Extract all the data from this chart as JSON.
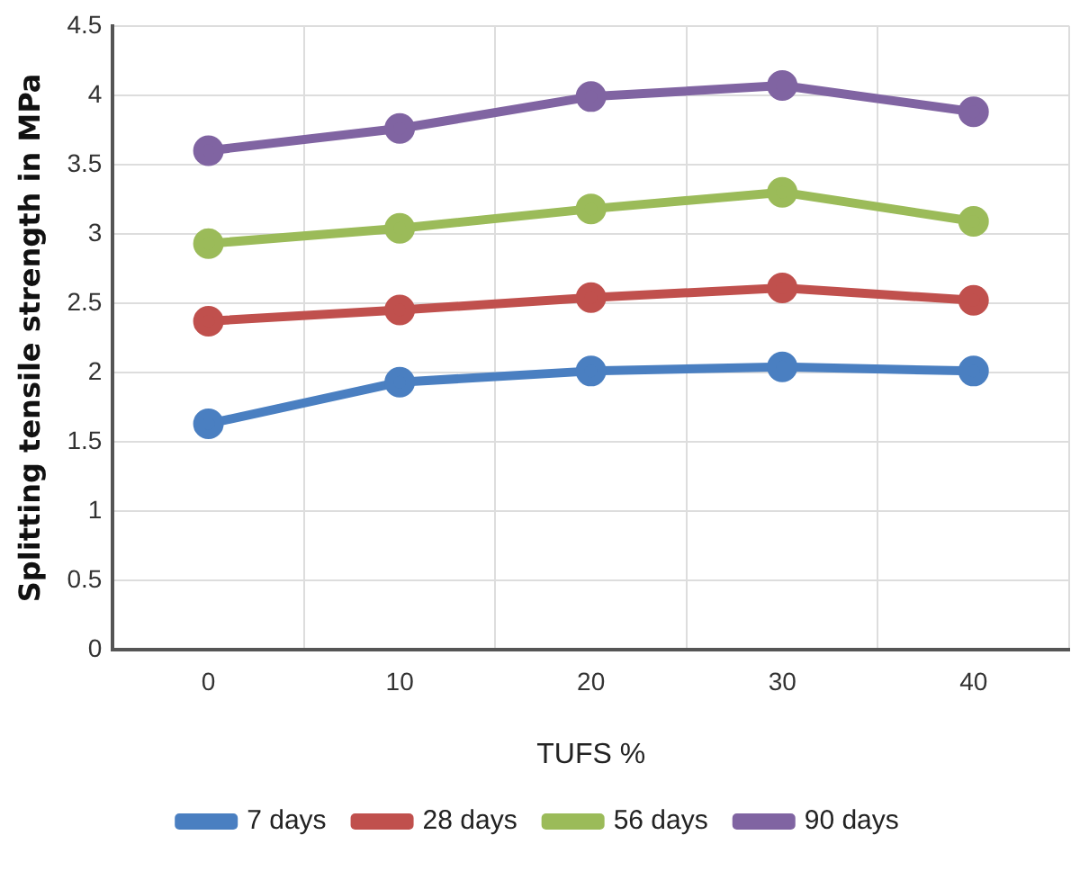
{
  "chart_data": {
    "type": "line",
    "xlabel": "TUFS %",
    "ylabel": "Splitting tensile strength in MPa",
    "categories": [
      "0",
      "10",
      "20",
      "30",
      "40"
    ],
    "series": [
      {
        "name": "7 days",
        "color": "#4a7fc1",
        "values": [
          1.63,
          1.93,
          2.01,
          2.04,
          2.01
        ]
      },
      {
        "name": "28 days",
        "color": "#c0504d",
        "values": [
          2.37,
          2.45,
          2.54,
          2.61,
          2.52
        ]
      },
      {
        "name": "56 days",
        "color": "#9bbb59",
        "values": [
          2.93,
          3.04,
          3.18,
          3.3,
          3.09
        ]
      },
      {
        "name": "90 days",
        "color": "#8064a2",
        "values": [
          3.6,
          3.76,
          3.99,
          4.07,
          3.88
        ]
      }
    ],
    "ylim": [
      0,
      4.5
    ],
    "yticks": [
      0,
      0.5,
      1,
      1.5,
      2,
      2.5,
      3,
      3.5,
      4,
      4.5
    ],
    "grid": true,
    "legend": "bottom",
    "marker": "circle",
    "line_style": "solid"
  }
}
